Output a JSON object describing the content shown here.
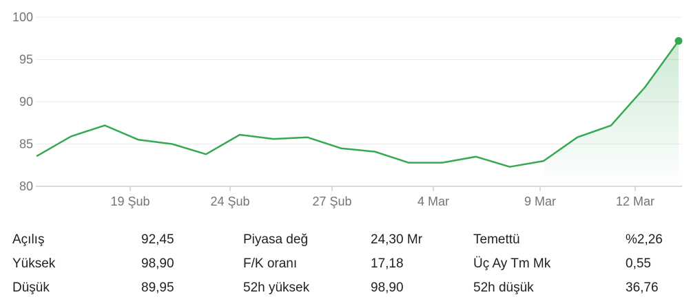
{
  "chart_data": {
    "type": "area",
    "ylim": [
      80,
      100
    ],
    "yticks": [
      "100",
      "95",
      "90",
      "85",
      "80"
    ],
    "xticks": [
      "19 Şub",
      "24 Şub",
      "27 Şub",
      "4 Mar",
      "9 Mar",
      "12 Mar"
    ],
    "series": [
      {
        "values": [
          83.6,
          85.9,
          87.2,
          85.5,
          85.0,
          83.8,
          86.1,
          85.6,
          85.8,
          84.5,
          84.1,
          82.8,
          82.8,
          83.5,
          82.3,
          83.0,
          85.8,
          87.2,
          91.7,
          97.2
        ]
      }
    ],
    "colors": {
      "line": "#34a853",
      "grid": "#ebebeb",
      "axis": "#70757a"
    },
    "grid": true
  },
  "stats": [
    [
      {
        "label": "Açılış",
        "value": "92,45"
      },
      {
        "label": "Piyasa değ",
        "value": "24,30 Mr"
      },
      {
        "label": "Temettü",
        "value": "%2,26"
      }
    ],
    [
      {
        "label": "Yüksek",
        "value": "98,90"
      },
      {
        "label": "F/K oranı",
        "value": "17,18"
      },
      {
        "label": "Üç Ay Tm Mk",
        "value": "0,55"
      }
    ],
    [
      {
        "label": "Düşük",
        "value": "89,95"
      },
      {
        "label": "52h yüksek",
        "value": "98,90"
      },
      {
        "label": "52h düşük",
        "value": "36,76"
      }
    ]
  ]
}
